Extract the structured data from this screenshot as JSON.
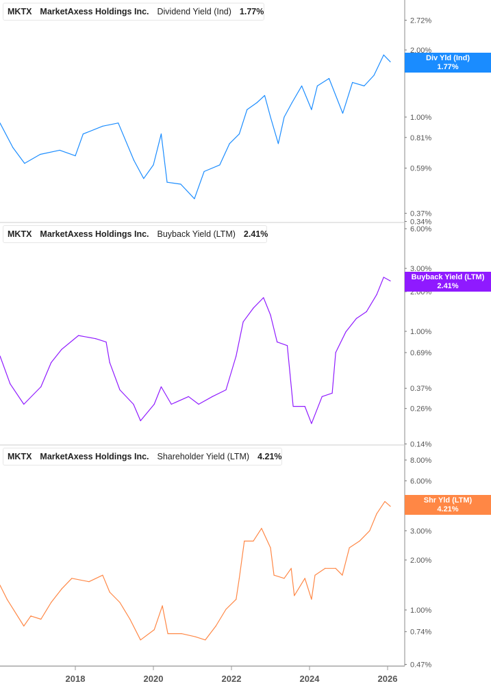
{
  "chart_data": [
    {
      "type": "line",
      "ticker": "MKTX",
      "company": "MarketAxess Holdings Inc.",
      "metric": "Dividend Yield (Ind)",
      "last_value": "1.77%",
      "tag_label": "Div Yld (Ind)",
      "color": "#1a8cff",
      "y_scale": "log",
      "y_ticks": [
        "2.72%",
        "2.00%",
        "1.00%",
        "0.81%",
        "0.59%",
        "0.37%",
        "0.34%"
      ],
      "x": [
        2016.07,
        2016.4,
        2016.7,
        2017.1,
        2017.6,
        2018.0,
        2018.2,
        2018.7,
        2019.1,
        2019.5,
        2019.75,
        2020.0,
        2020.2,
        2020.35,
        2020.7,
        2021.05,
        2021.3,
        2021.7,
        2021.95,
        2022.2,
        2022.4,
        2022.65,
        2022.85,
        2023.0,
        2023.2,
        2023.35,
        2023.55,
        2023.8,
        2024.05,
        2024.2,
        2024.5,
        2024.85,
        2025.1,
        2025.4,
        2025.65,
        2025.9,
        2026.07
      ],
      "y": [
        0.94,
        0.73,
        0.62,
        0.68,
        0.71,
        0.67,
        0.84,
        0.91,
        0.94,
        0.64,
        0.53,
        0.61,
        0.84,
        0.51,
        0.5,
        0.43,
        0.57,
        0.61,
        0.76,
        0.84,
        1.08,
        1.16,
        1.25,
        1.0,
        0.76,
        1.0,
        1.16,
        1.38,
        1.08,
        1.38,
        1.49,
        1.04,
        1.43,
        1.38,
        1.54,
        1.9,
        1.77
      ]
    },
    {
      "type": "line",
      "ticker": "MKTX",
      "company": "MarketAxess Holdings Inc.",
      "metric": "Buyback Yield (LTM)",
      "last_value": "2.41%",
      "tag_label": "Buyback Yield (LTM)",
      "color": "#8f1aff",
      "y_scale": "log",
      "y_ticks": [
        "6.00%",
        "3.00%",
        "2.00%",
        "1.00%",
        "0.69%",
        "0.37%",
        "0.26%",
        "0.14%"
      ],
      "x": [
        2016.07,
        2016.33,
        2016.68,
        2017.12,
        2017.38,
        2017.65,
        2018.08,
        2018.52,
        2018.79,
        2018.88,
        2019.14,
        2019.49,
        2019.67,
        2020.02,
        2020.2,
        2020.46,
        2020.9,
        2021.16,
        2021.51,
        2021.86,
        2022.12,
        2022.3,
        2022.56,
        2022.82,
        2023.0,
        2023.17,
        2023.43,
        2023.58,
        2023.88,
        2024.05,
        2024.32,
        2024.58,
        2024.67,
        2024.93,
        2025.2,
        2025.46,
        2025.72,
        2025.9,
        2026.07
      ],
      "y": [
        0.65,
        0.4,
        0.28,
        0.38,
        0.58,
        0.73,
        0.93,
        0.88,
        0.83,
        0.58,
        0.36,
        0.28,
        0.21,
        0.28,
        0.38,
        0.28,
        0.32,
        0.28,
        0.32,
        0.36,
        0.65,
        1.18,
        1.5,
        1.8,
        1.33,
        0.83,
        0.78,
        0.27,
        0.27,
        0.2,
        0.32,
        0.34,
        0.69,
        0.99,
        1.25,
        1.41,
        1.9,
        2.57,
        2.41
      ]
    },
    {
      "type": "line",
      "ticker": "MKTX",
      "company": "MarketAxess Holdings Inc.",
      "metric": "Shareholder Yield (LTM)",
      "last_value": "4.21%",
      "tag_label": "Shr Yld (LTM)",
      "color": "#ff8745",
      "y_scale": "log",
      "y_ticks": [
        "8.00%",
        "6.00%",
        "3.00%",
        "2.00%",
        "1.00%",
        "0.74%",
        "0.47%"
      ],
      "x": [
        2016.07,
        2016.25,
        2016.68,
        2016.86,
        2017.12,
        2017.38,
        2017.65,
        2017.91,
        2018.35,
        2018.7,
        2018.88,
        2019.14,
        2019.4,
        2019.67,
        2020.02,
        2020.23,
        2020.37,
        2020.72,
        2021.07,
        2021.33,
        2021.6,
        2021.86,
        2022.12,
        2022.2,
        2022.33,
        2022.56,
        2022.77,
        2023.0,
        2023.09,
        2023.35,
        2023.53,
        2023.61,
        2023.88,
        2024.05,
        2024.14,
        2024.4,
        2024.67,
        2024.84,
        2025.02,
        2025.28,
        2025.54,
        2025.72,
        2025.93,
        2026.07
      ],
      "y": [
        1.41,
        1.16,
        0.8,
        0.92,
        0.88,
        1.11,
        1.34,
        1.55,
        1.48,
        1.62,
        1.28,
        1.11,
        0.88,
        0.66,
        0.76,
        1.06,
        0.72,
        0.72,
        0.69,
        0.66,
        0.8,
        1.01,
        1.16,
        1.55,
        2.6,
        2.6,
        3.1,
        2.37,
        1.62,
        1.55,
        1.78,
        1.22,
        1.55,
        1.16,
        1.62,
        1.78,
        1.78,
        1.62,
        2.37,
        2.6,
        3.0,
        3.8,
        4.5,
        4.21
      ]
    }
  ],
  "x_ticks": [
    "2018",
    "2020",
    "2022",
    "2024",
    "2026"
  ]
}
